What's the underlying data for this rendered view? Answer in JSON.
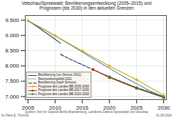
{
  "chart_data": {
    "type": "line",
    "title": "Vetschau/Spreewald: Bevölkerungsentwicklung (2005–2015) und\nPrognosen (bis 2030) in den aktuellen Grenzen",
    "xlim": [
      2004.5,
      2030.5
    ],
    "xticks": [
      2005,
      2010,
      2015,
      2020,
      2025,
      2030
    ],
    "ylim": [
      6900,
      9650
    ],
    "yticks": [
      {
        "value": 7000,
        "label": "7.000"
      },
      {
        "value": 7500,
        "label": "7.500"
      },
      {
        "value": 8000,
        "label": "8.000"
      },
      {
        "value": 8500,
        "label": "8.500"
      },
      {
        "value": 9000,
        "label": "9.000"
      },
      {
        "value": 9500,
        "label": "9.500"
      }
    ],
    "grid": true,
    "legend": "lower left",
    "series": [
      {
        "name": "Bevölkerung (vor Zensus 2011)",
        "color": "#1a3a6e",
        "line_style": "solid",
        "marker": "none",
        "x": [
          2005,
          2006,
          2007,
          2008,
          2009,
          2010,
          2011
        ],
        "values": [
          9480,
          9370,
          9250,
          9120,
          9000,
          8870,
          8740
        ]
      },
      {
        "name": "Raumordnungsbild 2011",
        "color": "#4466aa",
        "line_style": "dotted",
        "marker": "none",
        "x": [
          2005,
          2007,
          2009,
          2011,
          2013,
          2015,
          2017,
          2019,
          2021,
          2023,
          2025,
          2027,
          2030
        ],
        "values": [
          9480,
          9290,
          9090,
          8880,
          8670,
          8460,
          8240,
          8030,
          7820,
          7610,
          7420,
          7230,
          6970
        ]
      },
      {
        "name": "Bevölkerung (nach Zensus)",
        "color": "#1a3a6e",
        "line_style": "dashed",
        "marker": "none",
        "x": [
          2011,
          2012,
          2013,
          2014,
          2015,
          2016,
          2017,
          2018,
          2019,
          2020,
          2021,
          2022,
          2023,
          2024,
          2025,
          2026,
          2027,
          2028,
          2029,
          2030
        ],
        "values": [
          8380,
          8290,
          8200,
          8120,
          8040,
          7960,
          7880,
          7800,
          7720,
          7645,
          7570,
          7500,
          7430,
          7360,
          7295,
          7235,
          7175,
          7115,
          7060,
          7000
        ]
      },
      {
        "name": "Prognose des Landes BB 2005-2030",
        "color": "#c8a800",
        "line_style": "solid",
        "marker": "plus",
        "x": [
          2005,
          2010,
          2015,
          2020,
          2025,
          2030
        ],
        "values": [
          9480,
          8990,
          8490,
          8000,
          7550,
          7040
        ]
      },
      {
        "name": "Prognose des Landes BB 2017-2030",
        "color": "#cc2200",
        "line_style": "solid",
        "marker": "square",
        "x": [
          2017,
          2020,
          2025,
          2030
        ],
        "values": [
          7880,
          7620,
          7270,
          6970
        ]
      },
      {
        "name": "Prognose des Landes BB 2020-2030",
        "color": "#228833",
        "line_style": "dashed",
        "marker": "circle",
        "x": [
          2020,
          2025,
          2030
        ],
        "values": [
          7645,
          7290,
          6970
        ]
      }
    ],
    "annotations": [
      "by Hans E. Thürnck",
      "Quellen: Amt für Statistik Berlin-Brandenburg, Landkreis Dahme-Spreewald und Vetschau",
      "01.08.2024"
    ]
  }
}
